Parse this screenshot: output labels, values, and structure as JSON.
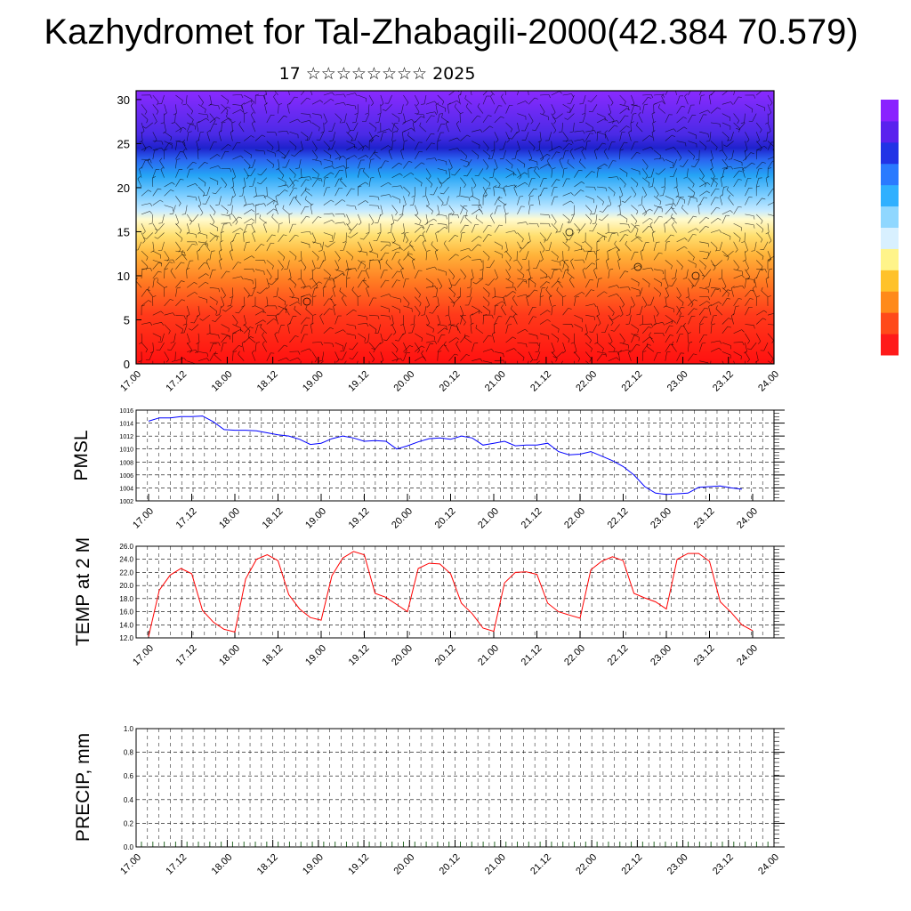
{
  "title": "Kazhydromet for Tal-Zhabagili-2000(42.384 70.579)",
  "subtitle": "17 ☆☆☆☆☆☆☆☆ 2025",
  "time_ticks": [
    "17.00",
    "17.12",
    "18.00",
    "18.12",
    "19.00",
    "19.12",
    "20.00",
    "20.12",
    "21.00",
    "21.12",
    "22.00",
    "22.12",
    "23.00",
    "23.12",
    "24.00"
  ],
  "colorbar": {
    "colors": [
      "#ff1a1a",
      "#ff4a1a",
      "#ff8a1a",
      "#ffc22a",
      "#fff48a",
      "#d8f0ff",
      "#8fd7ff",
      "#2fb0ff",
      "#2a7aff",
      "#2233e6",
      "#5a22ee",
      "#8a22ff"
    ]
  },
  "chart_data": [
    {
      "type": "heatmap",
      "name": "wind-temperature-profile",
      "x_ticks": [
        "17.00",
        "17.12",
        "18.00",
        "18.12",
        "19.00",
        "19.12",
        "20.00",
        "20.12",
        "21.00",
        "21.12",
        "22.00",
        "22.12",
        "23.00",
        "23.12",
        "24.00"
      ],
      "y_ticks": [
        "0",
        "5",
        "10",
        "15",
        "20",
        "25",
        "30"
      ],
      "ylim": [
        0,
        31
      ],
      "color_bands_by_level": [
        {
          "from": 0,
          "to": 8,
          "color": "#ff2a1a"
        },
        {
          "from": 8,
          "to": 13,
          "color": "#ff8a2a"
        },
        {
          "from": 13,
          "to": 17,
          "color": "#ffd94a"
        },
        {
          "from": 17,
          "to": 21,
          "color": "#9fdcff"
        },
        {
          "from": 21,
          "to": 25,
          "color": "#2a9cff"
        },
        {
          "from": 25,
          "to": 31,
          "color": "#6a22ee"
        }
      ]
    },
    {
      "type": "line",
      "ylabel": "PMSL",
      "ylim": [
        1002,
        1016
      ],
      "y_ticks": [
        "1002",
        "1004",
        "1006",
        "1008",
        "1010",
        "1012",
        "1014",
        "1016"
      ],
      "x_ticks": [
        "17.00",
        "17.12",
        "18.00",
        "18.12",
        "19.00",
        "19.12",
        "20.00",
        "20.12",
        "21.00",
        "21.12",
        "22.00",
        "22.12",
        "23.00",
        "23.12",
        "24.00"
      ],
      "color": "#0000ff",
      "x": [
        0,
        3,
        6,
        9,
        12,
        15,
        18,
        21,
        24,
        27,
        30,
        33,
        36,
        39,
        42,
        45,
        48,
        51,
        54,
        57,
        60,
        63,
        66,
        69,
        72,
        75,
        78,
        81,
        84,
        87,
        90,
        93,
        96,
        99,
        102,
        105,
        108,
        111,
        114,
        117,
        120,
        123,
        126,
        129,
        132,
        135,
        138,
        141,
        144,
        147,
        150,
        153,
        156,
        159,
        162,
        165
      ],
      "values": [
        1014.3,
        1014.8,
        1014.8,
        1015.0,
        1015.0,
        1015.1,
        1014.2,
        1013.0,
        1012.9,
        1012.9,
        1012.8,
        1012.5,
        1012.2,
        1012.0,
        1011.5,
        1010.7,
        1010.9,
        1011.6,
        1012.0,
        1011.7,
        1011.2,
        1011.3,
        1011.2,
        1010.0,
        1010.5,
        1011.1,
        1011.6,
        1011.7,
        1011.5,
        1012.0,
        1011.7,
        1010.6,
        1010.9,
        1011.2,
        1010.5,
        1010.6,
        1010.6,
        1010.9,
        1009.6,
        1009.1,
        1009.2,
        1009.6,
        1008.9,
        1008.2,
        1007.3,
        1006.0,
        1004.2,
        1003.2,
        1003.0,
        1003.1,
        1003.2,
        1004.1,
        1004.2,
        1004.3,
        1004.0,
        1003.8
      ]
    },
    {
      "type": "line",
      "ylabel": "TEMP at 2 M",
      "ylim": [
        12,
        26
      ],
      "y_ticks": [
        "12.0",
        "14.0",
        "16.0",
        "18.0",
        "20.0",
        "22.0",
        "24.0",
        "26.0"
      ],
      "x_ticks": [
        "17.00",
        "17.12",
        "18.00",
        "18.12",
        "19.00",
        "19.12",
        "20.00",
        "20.12",
        "21.00",
        "21.12",
        "22.00",
        "22.12",
        "23.00",
        "23.12",
        "24.00"
      ],
      "color": "#ff0000",
      "x": [
        0,
        3,
        6,
        9,
        12,
        15,
        18,
        21,
        24,
        27,
        30,
        33,
        36,
        39,
        42,
        45,
        48,
        51,
        54,
        57,
        60,
        63,
        66,
        69,
        72,
        75,
        78,
        81,
        84,
        87,
        90,
        93,
        96,
        99,
        102,
        105,
        108,
        111,
        114,
        117,
        120,
        123,
        126,
        129,
        132,
        135,
        138,
        141,
        144,
        147,
        150,
        153,
        156,
        159,
        162,
        165,
        168
      ],
      "values": [
        12.2,
        19.3,
        21.6,
        22.6,
        21.8,
        16.2,
        14.4,
        13.3,
        12.9,
        21.0,
        24.0,
        24.7,
        23.8,
        18.6,
        16.4,
        15.1,
        14.7,
        21.5,
        24.2,
        25.2,
        24.7,
        18.8,
        18.2,
        17.1,
        16.0,
        22.6,
        23.4,
        23.3,
        21.8,
        17.3,
        15.7,
        13.5,
        13.0,
        20.4,
        22.0,
        22.1,
        21.7,
        17.3,
        16.0,
        15.5,
        15.0,
        22.4,
        23.7,
        24.4,
        23.8,
        18.8,
        18.1,
        17.5,
        16.4,
        24.0,
        24.9,
        24.9,
        23.7,
        17.5,
        15.9,
        14.0,
        13.1
      ]
    },
    {
      "type": "bar",
      "ylabel": "PRECIP, mm",
      "ylim": [
        0.0,
        1.0
      ],
      "y_ticks": [
        "0.0",
        "0.2",
        "0.4",
        "0.6",
        "0.8",
        "1.0"
      ],
      "x_ticks": [
        "17.00",
        "17.12",
        "18.00",
        "18.12",
        "19.00",
        "19.12",
        "20.00",
        "20.12",
        "21.00",
        "21.12",
        "22.00",
        "22.12",
        "23.00",
        "23.12",
        "24.00"
      ],
      "values": []
    }
  ]
}
